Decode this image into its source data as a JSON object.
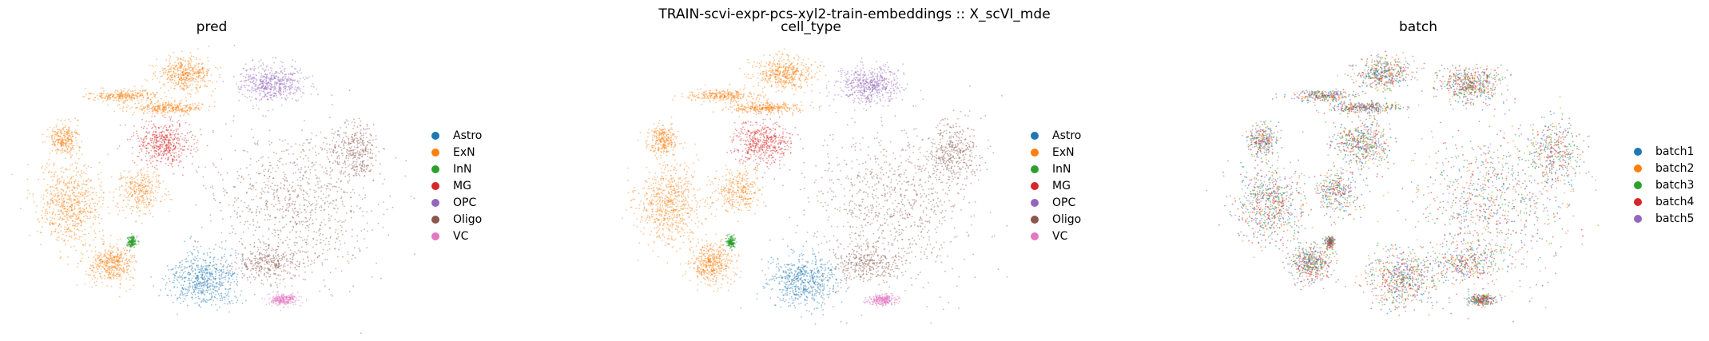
{
  "suptitle": "TRAIN-scvi-expr-pcs-xyl2-train-embeddings :: X_scVI_mde",
  "chart_data": [
    {
      "type": "scatter",
      "title": "pred",
      "xlabel": "",
      "ylabel": "",
      "grid": false,
      "axes_visible": false,
      "legend_position": "right",
      "color_by": "cell_type",
      "legend": [
        {
          "label": "Astro",
          "color": "#1f77b4"
        },
        {
          "label": "ExN",
          "color": "#ff7f0e"
        },
        {
          "label": "InN",
          "color": "#2ca02c"
        },
        {
          "label": "MG",
          "color": "#d62728"
        },
        {
          "label": "OPC",
          "color": "#9467bd"
        },
        {
          "label": "Oligo",
          "color": "#8c564b"
        },
        {
          "label": "VC",
          "color": "#e377c2"
        }
      ]
    },
    {
      "type": "scatter",
      "title": "cell_type",
      "xlabel": "",
      "ylabel": "",
      "grid": false,
      "axes_visible": false,
      "legend_position": "right",
      "color_by": "cell_type",
      "legend": [
        {
          "label": "Astro",
          "color": "#1f77b4"
        },
        {
          "label": "ExN",
          "color": "#ff7f0e"
        },
        {
          "label": "InN",
          "color": "#2ca02c"
        },
        {
          "label": "MG",
          "color": "#d62728"
        },
        {
          "label": "OPC",
          "color": "#9467bd"
        },
        {
          "label": "Oligo",
          "color": "#8c564b"
        },
        {
          "label": "VC",
          "color": "#e377c2"
        }
      ]
    },
    {
      "type": "scatter",
      "title": "batch",
      "xlabel": "",
      "ylabel": "",
      "grid": false,
      "axes_visible": false,
      "legend_position": "right",
      "color_by": "batch",
      "legend": [
        {
          "label": "batch1",
          "color": "#1f77b4"
        },
        {
          "label": "batch2",
          "color": "#ff7f0e"
        },
        {
          "label": "batch3",
          "color": "#2ca02c"
        },
        {
          "label": "batch4",
          "color": "#d62728"
        },
        {
          "label": "batch5",
          "color": "#9467bd"
        }
      ]
    }
  ]
}
